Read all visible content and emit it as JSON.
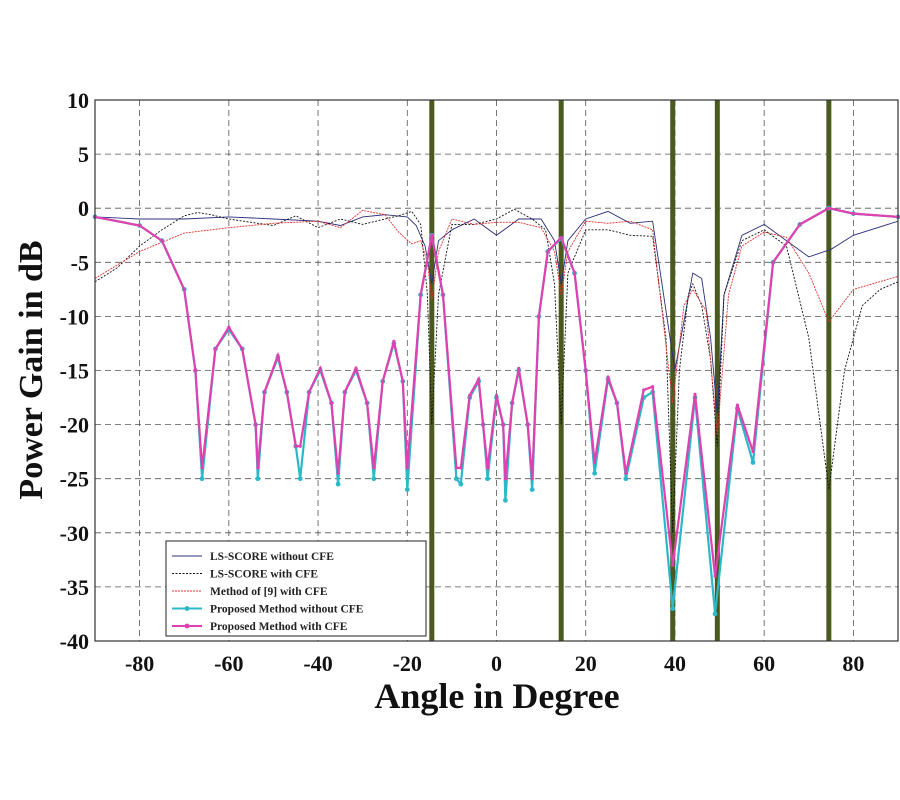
{
  "chart_data": {
    "type": "line",
    "xlabel": "Angle in Degree",
    "ylabel": "Power Gain in dB",
    "xlim": [
      -90,
      90
    ],
    "ylim": [
      -40,
      10
    ],
    "x_ticks": [
      -80,
      -60,
      -40,
      -20,
      0,
      20,
      40,
      60,
      80
    ],
    "y_ticks": [
      10,
      5,
      0,
      -5,
      -10,
      -15,
      -20,
      -25,
      -30,
      -35,
      -40
    ],
    "grid": true,
    "legend_position": "bottom-left",
    "vertical_markers": [
      -14.5,
      14.5,
      39.5,
      49.5,
      74.5
    ],
    "marker_color": "#4a5a1e",
    "series": [
      {
        "name": "LS-SCORE without CFE",
        "color": "#2b2f7a",
        "x": [
          -90,
          -80,
          -70,
          -60,
          -50,
          -40,
          -35,
          -30,
          -25,
          -20,
          -18,
          -16,
          -14.5,
          -13,
          -10,
          -5,
          0,
          5,
          10,
          13,
          14.5,
          16,
          20,
          25,
          30,
          35,
          40,
          44,
          46,
          48,
          49.5,
          51,
          55,
          60,
          65,
          70,
          75,
          80,
          90
        ],
        "y": [
          -0.8,
          -1,
          -1,
          -0.8,
          -1,
          -1.2,
          -1.6,
          -0.8,
          -0.6,
          -0.8,
          -1.6,
          -3.5,
          -7,
          -3,
          -2,
          -1,
          -2.5,
          -1,
          -1,
          -3,
          -7,
          -3,
          -1,
          -0.3,
          -1.4,
          -1.2,
          -15,
          -6,
          -6.5,
          -12,
          -19,
          -8,
          -2.5,
          -1.5,
          -3,
          -4.5,
          -3.8,
          -2.5,
          -1.2
        ]
      },
      {
        "name": "LS-SCORE with CFE",
        "color": "#111111",
        "x": [
          -90,
          -85,
          -80,
          -75,
          -70,
          -67,
          -64,
          -60,
          -55,
          -50,
          -45,
          -40,
          -35,
          -30,
          -25,
          -22,
          -19,
          -17,
          -15.5,
          -14.5,
          -13,
          -10,
          -5,
          0,
          4,
          8,
          11,
          13,
          14.5,
          16,
          20,
          25,
          30,
          35,
          38,
          39.5,
          41,
          43,
          44,
          46,
          48,
          49.5,
          51,
          55,
          60,
          65,
          70,
          74.5,
          78,
          82,
          86,
          90
        ],
        "y": [
          -6.8,
          -5.5,
          -3.5,
          -2,
          -0.7,
          -0.4,
          -0.6,
          -1,
          -1.3,
          -1.6,
          -0.7,
          -1.8,
          -1,
          -1.5,
          -1,
          -0.7,
          -0.3,
          -1.5,
          -8,
          -20,
          -8,
          -1.5,
          -1.5,
          -1,
          -0.1,
          -1,
          -2,
          -7,
          -20,
          -6,
          -2,
          -2,
          -2.5,
          -2.6,
          -12,
          -30,
          -15,
          -8,
          -7,
          -9,
          -14,
          -22,
          -8,
          -3,
          -2,
          -3.5,
          -12,
          -26,
          -15,
          -9,
          -7.5,
          -6.8
        ]
      },
      {
        "name": "Method of [9] with CFE",
        "color": "#e03030",
        "x": [
          -90,
          -80,
          -70,
          -60,
          -50,
          -40,
          -35,
          -30,
          -25,
          -22,
          -19,
          -17,
          -15.5,
          -14.5,
          -13,
          -10,
          -5,
          0,
          5,
          10,
          13,
          14.5,
          16,
          20,
          25,
          30,
          35,
          39.5,
          42,
          44,
          47,
          49.5,
          52,
          55,
          60,
          65,
          70,
          74.5,
          80,
          90
        ],
        "y": [
          -6.5,
          -4,
          -2.3,
          -1.8,
          -1.4,
          -1.2,
          -1.8,
          -0.2,
          -0.6,
          -2.2,
          -3.3,
          -3,
          -5,
          -8.5,
          -4,
          -1,
          -1.5,
          -1.3,
          -1.3,
          -1.8,
          -4,
          -8,
          -4,
          -1.2,
          -1.4,
          -1.2,
          -2,
          -18,
          -9,
          -7.5,
          -9.5,
          -21,
          -8,
          -3.5,
          -2.2,
          -2.7,
          -6,
          -10.5,
          -7.5,
          -6.3
        ]
      },
      {
        "name": "Proposed Method without CFE",
        "color": "#2bb8c8",
        "x": [
          -90,
          -80,
          -75,
          -70,
          -67.5,
          -66,
          -63,
          -60,
          -57,
          -54,
          -53.5,
          -52,
          -49,
          -47,
          -45,
          -44,
          -42,
          -39.5,
          -37,
          -35.5,
          -34,
          -31.5,
          -29,
          -27.5,
          -25.5,
          -23,
          -21,
          -20,
          -17,
          -14.5,
          -12,
          -9,
          -8,
          -6,
          -4,
          -3,
          -2,
          0,
          1.5,
          2,
          3.5,
          5,
          7,
          8,
          9.5,
          11.5,
          14.5,
          17.5,
          20,
          22,
          25,
          27,
          29,
          33,
          35,
          39.5,
          44.5,
          49,
          54,
          57.5,
          62,
          68,
          74.5,
          80,
          90
        ],
        "y": [
          -0.8,
          -1.6,
          -3,
          -7.5,
          -15,
          -25,
          -13,
          -11.2,
          -13,
          -20,
          -25,
          -17,
          -13.8,
          -17,
          -22,
          -25,
          -17,
          -15,
          -18,
          -25.5,
          -17,
          -15,
          -18,
          -25,
          -16,
          -12.5,
          -16,
          -26,
          -8,
          -2.5,
          -8,
          -25,
          -25.5,
          -17.5,
          -16,
          -20,
          -25,
          -17.5,
          -20,
          -27,
          -18,
          -15,
          -20,
          -26,
          -10,
          -4,
          -2.8,
          -6,
          -15,
          -24.5,
          -15.8,
          -18,
          -25,
          -17.5,
          -17,
          -37,
          -17.5,
          -37.5,
          -18.5,
          -23.5,
          -5,
          -1.5,
          0,
          -0.5,
          -0.8
        ]
      },
      {
        "name": "Proposed Method with CFE",
        "color": "#e040b0",
        "x": [
          -90,
          -80,
          -75,
          -70,
          -67.5,
          -66,
          -63,
          -60,
          -57,
          -54,
          -53.5,
          -52,
          -49,
          -47,
          -45,
          -44,
          -42,
          -39.5,
          -37,
          -35.5,
          -34,
          -31.5,
          -29,
          -27.5,
          -25.5,
          -23,
          -21,
          -20,
          -17,
          -14.5,
          -12,
          -9,
          -8,
          -6,
          -4,
          -3,
          -2,
          0,
          1.5,
          2,
          3.5,
          5,
          7,
          8,
          9.5,
          11.5,
          14.5,
          17.5,
          20,
          22,
          25,
          27,
          29,
          33,
          35,
          39.5,
          44.5,
          49,
          54,
          57.5,
          62,
          68,
          74.5,
          80,
          90
        ],
        "y": [
          -0.8,
          -1.6,
          -3,
          -7.5,
          -15,
          -24,
          -13,
          -11,
          -13,
          -20,
          -24,
          -17,
          -13.6,
          -17,
          -22,
          -22,
          -17,
          -14.8,
          -18,
          -24.5,
          -17,
          -14.8,
          -18,
          -24,
          -16,
          -12.3,
          -16,
          -24,
          -8,
          -2.5,
          -8,
          -24,
          -24,
          -17.3,
          -15.8,
          -20,
          -24,
          -17.3,
          -20,
          -25,
          -18,
          -14.8,
          -20,
          -25,
          -10,
          -4,
          -2.7,
          -6,
          -15,
          -23.5,
          -15.6,
          -18,
          -24.5,
          -16.8,
          -16.5,
          -33,
          -17.2,
          -34,
          -18.2,
          -22.5,
          -5,
          -1.5,
          0,
          -0.5,
          -0.8
        ]
      }
    ]
  }
}
